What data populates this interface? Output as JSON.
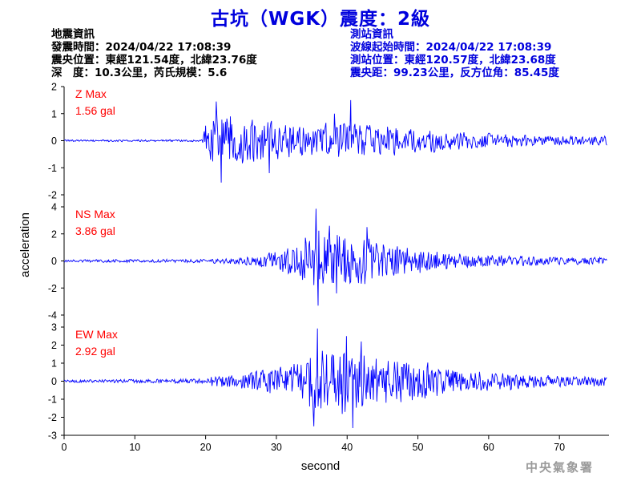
{
  "title": "古坑（WGK）震度：2級",
  "earthquake_info": {
    "heading": "地震資訊",
    "time": "發震時間：2024/04/22 17:08:39",
    "epicenter": "震央位置：東經121.54度，北緯23.76度",
    "depth_magnitude": "深　度：10.3公里，芮氏規模：5.6"
  },
  "station_info": {
    "heading": "測站資訊",
    "wave_start": "波線起始時間：2024/04/22 17:08:39",
    "location": "測站位置：東經120.57度，北緯23.68度",
    "distance_azimuth": "震央距：99.23公里，反方位角：85.45度"
  },
  "agency": "中央氣象署",
  "colors": {
    "title": "#0000dd",
    "station_info": "#0000dd",
    "trace": "#0000ff",
    "max_label": "#ff0000",
    "agency": "#9a9a9a"
  },
  "chart_data": {
    "type": "line",
    "xlabel": "second",
    "ylabel": "acceleration",
    "xlim": [
      0,
      77
    ],
    "xticks": [
      0,
      10,
      20,
      30,
      40,
      50,
      60,
      70
    ],
    "x_step": 0.1,
    "panels": [
      {
        "component": "Z",
        "max_label": "Z Max",
        "max_value": "1.56 gal",
        "ylim": [
          -2,
          2
        ],
        "yticks": [
          -2,
          -1,
          0,
          1,
          2
        ],
        "envelope": [
          [
            0,
            0.04
          ],
          [
            19.5,
            0.04
          ],
          [
            20,
            0.7
          ],
          [
            21,
            0.9
          ],
          [
            23,
            1.0
          ],
          [
            25,
            0.95
          ],
          [
            28,
            0.9
          ],
          [
            30,
            0.75
          ],
          [
            35,
            0.65
          ],
          [
            40,
            0.75
          ],
          [
            41,
            0.8
          ],
          [
            45,
            0.6
          ],
          [
            50,
            0.5
          ],
          [
            55,
            0.4
          ],
          [
            60,
            0.3
          ],
          [
            65,
            0.25
          ],
          [
            70,
            0.2
          ],
          [
            77,
            0.2
          ]
        ],
        "peaks": [
          [
            22.2,
            -1.55
          ],
          [
            40.5,
            1.5
          ],
          [
            21.5,
            1.45
          ],
          [
            29.0,
            -1.2
          ],
          [
            38.2,
            1.0
          ]
        ]
      },
      {
        "component": "NS",
        "max_label": "NS Max",
        "max_value": "3.86 gal",
        "ylim": [
          -4,
          4
        ],
        "yticks": [
          -4,
          -2,
          0,
          2,
          4
        ],
        "envelope": [
          [
            0,
            0.1
          ],
          [
            20,
            0.15
          ],
          [
            25,
            0.3
          ],
          [
            28,
            0.5
          ],
          [
            30,
            0.8
          ],
          [
            33,
            1.3
          ],
          [
            35,
            2.2
          ],
          [
            36,
            2.5
          ],
          [
            38,
            2.2
          ],
          [
            40,
            2.3
          ],
          [
            42,
            2.0
          ],
          [
            45,
            1.6
          ],
          [
            50,
            1.0
          ],
          [
            55,
            0.7
          ],
          [
            60,
            0.5
          ],
          [
            65,
            0.4
          ],
          [
            70,
            0.3
          ],
          [
            77,
            0.3
          ]
        ],
        "peaks": [
          [
            35.6,
            3.86
          ],
          [
            35.9,
            -3.3
          ],
          [
            37.5,
            2.6
          ],
          [
            38.5,
            -2.4
          ],
          [
            42.8,
            2.5
          ]
        ]
      },
      {
        "component": "EW",
        "max_label": "EW Max",
        "max_value": "2.92 gal",
        "ylim": [
          -3,
          3
        ],
        "yticks": [
          -3,
          -2,
          -1,
          0,
          1,
          2,
          3
        ],
        "envelope": [
          [
            0,
            0.08
          ],
          [
            20,
            0.15
          ],
          [
            21,
            0.35
          ],
          [
            25,
            0.5
          ],
          [
            30,
            0.8
          ],
          [
            33,
            1.2
          ],
          [
            35,
            1.9
          ],
          [
            36,
            2.1
          ],
          [
            40,
            2.1
          ],
          [
            41,
            2.0
          ],
          [
            45,
            1.5
          ],
          [
            50,
            1.2
          ],
          [
            55,
            0.8
          ],
          [
            60,
            0.6
          ],
          [
            65,
            0.45
          ],
          [
            70,
            0.35
          ],
          [
            77,
            0.3
          ]
        ],
        "peaks": [
          [
            35.8,
            2.92
          ],
          [
            35.3,
            -2.5
          ],
          [
            40.8,
            -2.6
          ],
          [
            39.9,
            2.5
          ],
          [
            42.0,
            2.2
          ]
        ]
      }
    ]
  }
}
